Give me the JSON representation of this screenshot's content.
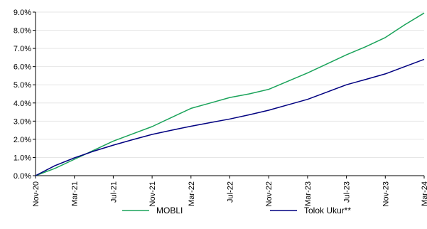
{
  "chart_data": {
    "type": "line",
    "title": "",
    "xlabel": "",
    "ylabel": "",
    "ylim": [
      0,
      9
    ],
    "y_ticks": [
      "0.0%",
      "1.0%",
      "2.0%",
      "3.0%",
      "4.0%",
      "5.0%",
      "6.0%",
      "7.0%",
      "8.0%",
      "9.0%"
    ],
    "x_ticks": [
      "Nov-20",
      "Mar-21",
      "Jul-21",
      "Nov-21",
      "Mar-22",
      "Jul-22",
      "Nov-22",
      "Mar-23",
      "Jul-23",
      "Nov-23",
      "Mar-24"
    ],
    "grid": "horizontal",
    "legend_position": "bottom",
    "x": [
      "Nov-20",
      "Jan-21",
      "Mar-21",
      "May-21",
      "Jul-21",
      "Sep-21",
      "Nov-21",
      "Jan-22",
      "Mar-22",
      "May-22",
      "Jul-22",
      "Sep-22",
      "Nov-22",
      "Jan-23",
      "Mar-23",
      "May-23",
      "Jul-23",
      "Sep-23",
      "Nov-23",
      "Jan-24",
      "Mar-24"
    ],
    "series": [
      {
        "name": "MOBLI",
        "color": "#1aa35a",
        "values": [
          0.0,
          0.4,
          0.9,
          1.4,
          1.9,
          2.3,
          2.7,
          3.2,
          3.7,
          4.0,
          4.3,
          4.5,
          4.75,
          5.2,
          5.65,
          6.15,
          6.65,
          7.1,
          7.6,
          8.3,
          8.95
        ]
      },
      {
        "name": "Tolok Ukur**",
        "color": "#000080",
        "values": [
          0.0,
          0.55,
          0.98,
          1.35,
          1.68,
          1.98,
          2.27,
          2.5,
          2.72,
          2.92,
          3.12,
          3.35,
          3.6,
          3.9,
          4.2,
          4.6,
          5.0,
          5.3,
          5.6,
          6.0,
          6.4
        ]
      }
    ]
  }
}
